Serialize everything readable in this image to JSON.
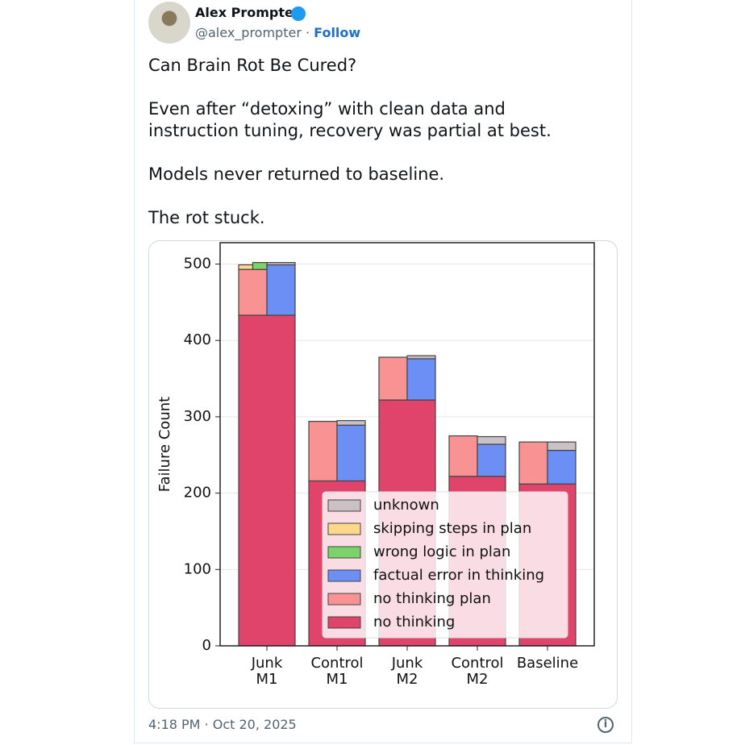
{
  "tweet": {
    "name": "Alex Prompter",
    "handle": "@alex_prompter",
    "separator": "·",
    "follow": "Follow",
    "text": [
      "Can Brain Rot Be Cured?",
      "Even after “detoxing” with clean data and instruction tuning, recovery was partial at best.",
      "Models never returned to baseline.",
      "The rot stuck."
    ],
    "timestamp": "4:18 PM · Oct 20, 2025"
  },
  "chart_data": {
    "type": "bar",
    "y_label": "Failure Count",
    "categories": [
      "Junk M1",
      "Control M1",
      "Junk M2",
      "Control M2",
      "Baseline"
    ],
    "series": [
      {
        "name": "unknown",
        "color": "#c9c1c5",
        "values": [
          3,
          6,
          4,
          10,
          11
        ]
      },
      {
        "name": "skipping steps in plan",
        "color": "#fdd88a",
        "values": [
          6,
          0,
          0,
          0,
          0
        ]
      },
      {
        "name": "wrong logic in plan",
        "color": "#7dd36b",
        "values": [
          9,
          0,
          0,
          0,
          0
        ]
      },
      {
        "name": "factual error in thinking",
        "color": "#6b8ff5",
        "values": [
          66,
          73,
          54,
          42,
          44
        ]
      },
      {
        "name": "no thinking plan",
        "color": "#f99292",
        "values": [
          60,
          78,
          56,
          53,
          55
        ]
      },
      {
        "name": "no thinking",
        "color": "#e0446a",
        "values": [
          433,
          216,
          322,
          222,
          212
        ]
      }
    ],
    "ylim": [
      0,
      528
    ],
    "yticks": [
      0,
      100,
      200,
      300,
      400,
      500
    ],
    "grid": true,
    "legend": "lower right"
  }
}
